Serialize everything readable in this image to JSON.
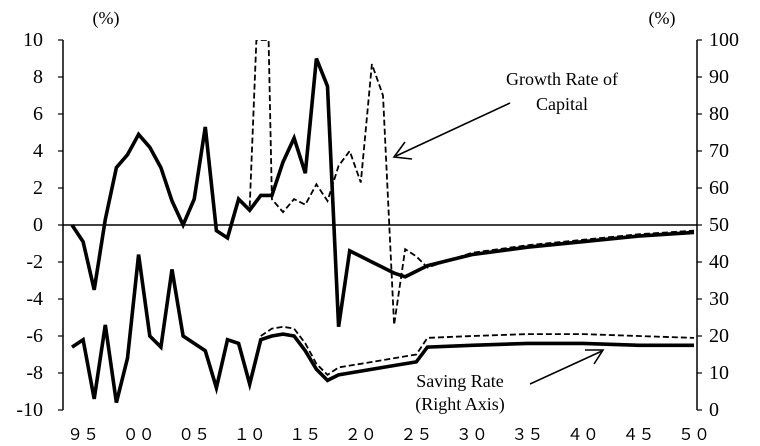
{
  "chart_data": {
    "type": "line",
    "title": "",
    "left_unit": "(%)",
    "right_unit": "(%)",
    "x_tick_labels": [
      "９５",
      "００",
      "０５",
      "１０",
      "１５",
      "２０",
      "２５",
      "３０",
      "３５",
      "４０",
      "４５",
      "５０"
    ],
    "x_tick_values": [
      1995,
      2000,
      2005,
      2010,
      2015,
      2020,
      2025,
      2030,
      2035,
      2040,
      2045,
      2050
    ],
    "xlim": [
      1994,
      2050
    ],
    "left_axis": {
      "ylim": [
        -10,
        10
      ],
      "ticks": [
        10,
        8,
        6,
        4,
        2,
        0,
        -2,
        -4,
        -6,
        -8,
        -10
      ]
    },
    "right_axis": {
      "ylim": [
        0,
        100
      ],
      "ticks": [
        100,
        90,
        80,
        70,
        60,
        50,
        40,
        30,
        20,
        10,
        0
      ]
    },
    "grid": false,
    "legend": "none",
    "annotations": [
      {
        "id": "growth",
        "text": [
          "Growth Rate of",
          "Capital"
        ]
      },
      {
        "id": "saving",
        "text": [
          "Saving Rate",
          "(Right Axis)"
        ]
      }
    ],
    "series": [
      {
        "id": "growth-solid",
        "axis": "left",
        "style": "solid",
        "points": [
          [
            1994,
            0.0
          ],
          [
            1995,
            -0.9
          ],
          [
            1996,
            -3.5
          ],
          [
            1997,
            0.3
          ],
          [
            1998,
            3.1
          ],
          [
            1999,
            3.8
          ],
          [
            2000,
            4.9
          ],
          [
            2001,
            4.2
          ],
          [
            2002,
            3.1
          ],
          [
            2003,
            1.3
          ],
          [
            2004,
            0.0
          ],
          [
            2005,
            1.4
          ],
          [
            2006,
            5.3
          ],
          [
            2007,
            -0.3
          ],
          [
            2008,
            -0.7
          ],
          [
            2009,
            1.4
          ],
          [
            2010,
            0.8
          ],
          [
            2011,
            1.6
          ],
          [
            2012,
            1.6
          ],
          [
            2013,
            3.4
          ],
          [
            2014,
            4.7
          ],
          [
            2015,
            2.8
          ],
          [
            2016,
            9.0
          ],
          [
            2017,
            7.5
          ],
          [
            2018,
            -5.5
          ],
          [
            2019,
            -1.4
          ],
          [
            2020,
            -1.7
          ],
          [
            2021,
            -2.0
          ],
          [
            2022,
            -2.3
          ],
          [
            2023,
            -2.6
          ],
          [
            2024,
            -2.8
          ],
          [
            2025,
            -2.5
          ],
          [
            2026,
            -2.2
          ],
          [
            2028,
            -1.9
          ],
          [
            2030,
            -1.6
          ],
          [
            2035,
            -1.2
          ],
          [
            2040,
            -0.9
          ],
          [
            2045,
            -0.6
          ],
          [
            2050,
            -0.4
          ]
        ]
      },
      {
        "id": "growth-dashed",
        "axis": "left",
        "style": "dashed",
        "points": [
          [
            2010,
            1.0
          ],
          [
            2010.6,
            10.0
          ],
          [
            2011.7,
            10.0
          ],
          [
            2012,
            1.4
          ],
          [
            2013,
            0.7
          ],
          [
            2014,
            1.4
          ],
          [
            2015,
            1.1
          ],
          [
            2016,
            2.2
          ],
          [
            2017,
            1.3
          ],
          [
            2018,
            3.2
          ],
          [
            2019,
            4.0
          ],
          [
            2020,
            2.3
          ],
          [
            2021,
            8.7
          ],
          [
            2022,
            7.0
          ],
          [
            2023,
            -5.4
          ],
          [
            2024,
            -1.3
          ],
          [
            2025,
            -1.7
          ],
          [
            2026,
            -2.3
          ],
          [
            2027,
            -2.1
          ],
          [
            2028,
            -1.9
          ],
          [
            2030,
            -1.5
          ],
          [
            2035,
            -1.1
          ],
          [
            2040,
            -0.8
          ],
          [
            2045,
            -0.5
          ],
          [
            2050,
            -0.3
          ]
        ]
      },
      {
        "id": "saving-solid",
        "axis": "right",
        "style": "solid",
        "points": [
          [
            1994,
            17
          ],
          [
            1995,
            19
          ],
          [
            1996,
            3
          ],
          [
            1997,
            23
          ],
          [
            1998,
            2
          ],
          [
            1999,
            14
          ],
          [
            2000,
            42
          ],
          [
            2001,
            20
          ],
          [
            2002,
            17
          ],
          [
            2003,
            38
          ],
          [
            2004,
            20
          ],
          [
            2005,
            18
          ],
          [
            2006,
            16
          ],
          [
            2007,
            6
          ],
          [
            2008,
            19
          ],
          [
            2009,
            18
          ],
          [
            2010,
            7
          ],
          [
            2011,
            19
          ],
          [
            2012,
            20
          ],
          [
            2013,
            20.5
          ],
          [
            2014,
            20
          ],
          [
            2015,
            16
          ],
          [
            2016,
            11
          ],
          [
            2017,
            8
          ],
          [
            2018,
            9.5
          ],
          [
            2019,
            10
          ],
          [
            2020,
            10.5
          ],
          [
            2022,
            11.5
          ],
          [
            2025,
            13
          ],
          [
            2026,
            17
          ],
          [
            2030,
            17.5
          ],
          [
            2035,
            18
          ],
          [
            2040,
            18
          ],
          [
            2045,
            17.5
          ],
          [
            2050,
            17.5
          ]
        ]
      },
      {
        "id": "saving-dashed",
        "axis": "right",
        "style": "dashed",
        "points": [
          [
            2011,
            20
          ],
          [
            2012,
            22
          ],
          [
            2013,
            22.5
          ],
          [
            2014,
            22
          ],
          [
            2015,
            18
          ],
          [
            2016,
            12.5
          ],
          [
            2017,
            9.5
          ],
          [
            2018,
            11.5
          ],
          [
            2020,
            12.5
          ],
          [
            2022,
            13.5
          ],
          [
            2025,
            15
          ],
          [
            2026,
            19.5
          ],
          [
            2030,
            20
          ],
          [
            2035,
            20.5
          ],
          [
            2040,
            20.5
          ],
          [
            2045,
            20
          ],
          [
            2050,
            19.5
          ]
        ]
      }
    ]
  }
}
